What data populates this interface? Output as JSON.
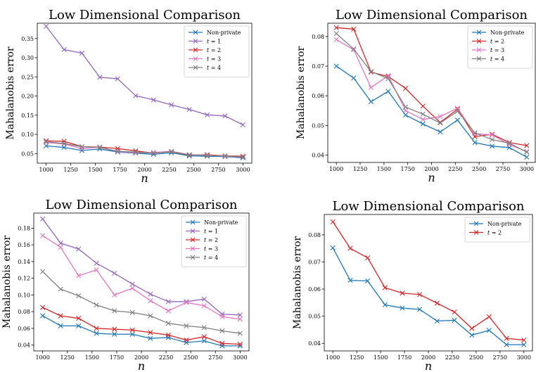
{
  "chart_data": [
    {
      "type": "line",
      "title": "Low Dimensional Comparison",
      "xlabel": "n",
      "ylabel": "Mahalanobis error",
      "x": [
        1000,
        1182,
        1364,
        1545,
        1727,
        1909,
        2091,
        2273,
        2455,
        2636,
        2818,
        3000
      ],
      "xticks": [
        1000,
        1250,
        1500,
        1750,
        2000,
        2250,
        2500,
        2750,
        3000
      ],
      "yticks": [
        0.05,
        0.1,
        0.15,
        0.2,
        0.25,
        0.3,
        0.35
      ],
      "ytick_labels": [
        "0.05",
        "0.10",
        "0.15",
        "0.20",
        "0.25",
        "0.30",
        "0.35"
      ],
      "xlim": [
        910,
        3090
      ],
      "ylim": [
        0.025,
        0.39
      ],
      "legend": "top-right",
      "series": [
        {
          "name": "Non-private",
          "color": "#1f77b4",
          "values": [
            0.07,
            0.066,
            0.058,
            0.062,
            0.054,
            0.051,
            0.048,
            0.052,
            0.044,
            0.043,
            0.042,
            0.039
          ]
        },
        {
          "name": "t = 1",
          "color": "#9467bd",
          "values": [
            0.382,
            0.321,
            0.312,
            0.249,
            0.245,
            0.201,
            0.19,
            0.177,
            0.165,
            0.151,
            0.148,
            0.125
          ]
        },
        {
          "name": "t = 2",
          "color": "#d62728",
          "values": [
            0.083,
            0.082,
            0.068,
            0.067,
            0.063,
            0.057,
            0.051,
            0.055,
            0.046,
            0.047,
            0.044,
            0.043
          ]
        },
        {
          "name": "t = 3",
          "color": "#e377c2",
          "values": [
            0.079,
            0.075,
            0.063,
            0.067,
            0.055,
            0.052,
            0.053,
            0.056,
            0.047,
            0.046,
            0.043,
            0.041
          ]
        },
        {
          "name": "t = 4",
          "color": "#7f7f7f",
          "values": [
            0.081,
            0.076,
            0.068,
            0.066,
            0.056,
            0.054,
            0.051,
            0.055,
            0.047,
            0.045,
            0.044,
            0.041
          ]
        }
      ]
    },
    {
      "type": "line",
      "title": "Low Dimensional Comparison",
      "xlabel": "n",
      "ylabel": "Mahalanobis error",
      "x": [
        1000,
        1182,
        1364,
        1545,
        1727,
        1909,
        2091,
        2273,
        2455,
        2636,
        2818,
        3000
      ],
      "xticks": [
        1000,
        1250,
        1500,
        1750,
        2000,
        2250,
        2500,
        2750,
        3000
      ],
      "yticks": [
        0.04,
        0.05,
        0.06,
        0.07,
        0.08
      ],
      "ytick_labels": [
        "0.04",
        "0.05",
        "0.06",
        "0.07",
        "0.08"
      ],
      "xlim": [
        910,
        3090
      ],
      "ylim": [
        0.0375,
        0.0845
      ],
      "legend": "top-right",
      "series": [
        {
          "name": "Non-private",
          "color": "#1f77b4",
          "values": [
            0.07,
            0.066,
            0.058,
            0.0615,
            0.0535,
            0.0505,
            0.0478,
            0.0518,
            0.0442,
            0.043,
            0.0425,
            0.0393
          ]
        },
        {
          "name": "t = 2",
          "color": "#d62728",
          "values": [
            0.083,
            0.0825,
            0.068,
            0.0665,
            0.0625,
            0.0565,
            0.051,
            0.0555,
            0.0462,
            0.047,
            0.0442,
            0.0432
          ]
        },
        {
          "name": "t = 3",
          "color": "#e377c2",
          "values": [
            0.079,
            0.0755,
            0.0628,
            0.0668,
            0.055,
            0.052,
            0.053,
            0.0558,
            0.0472,
            0.0468,
            0.0435,
            0.0412
          ]
        },
        {
          "name": "t = 4",
          "color": "#7f7f7f",
          "values": [
            0.081,
            0.0758,
            0.0682,
            0.0658,
            0.0562,
            0.0538,
            0.0508,
            0.0548,
            0.0475,
            0.0452,
            0.044,
            0.041
          ]
        }
      ]
    },
    {
      "type": "line",
      "title": "Low Dimensional Comparison",
      "xlabel": "n",
      "ylabel": "Mahalanobis error",
      "x": [
        1000,
        1182,
        1364,
        1545,
        1727,
        1909,
        2091,
        2273,
        2455,
        2636,
        2818,
        3000
      ],
      "xticks": [
        1000,
        1250,
        1500,
        1750,
        2000,
        2250,
        2500,
        2750,
        3000
      ],
      "yticks": [
        0.04,
        0.06,
        0.08,
        0.1,
        0.12,
        0.14,
        0.16,
        0.18
      ],
      "ytick_labels": [
        "0.04",
        "0.06",
        "0.08",
        "0.10",
        "0.12",
        "0.14",
        "0.16",
        "0.18"
      ],
      "xlim": [
        910,
        3090
      ],
      "ylim": [
        0.033,
        0.198
      ],
      "legend": "top-right",
      "series": [
        {
          "name": "Non-private",
          "color": "#1f77b4",
          "values": [
            0.075,
            0.063,
            0.063,
            0.054,
            0.053,
            0.053,
            0.048,
            0.049,
            0.043,
            0.045,
            0.039,
            0.039
          ]
        },
        {
          "name": "t = 1",
          "color": "#9467bd",
          "values": [
            0.191,
            0.162,
            0.155,
            0.138,
            0.126,
            0.113,
            0.101,
            0.092,
            0.092,
            0.095,
            0.077,
            0.076
          ]
        },
        {
          "name": "t = 2",
          "color": "#d62728",
          "values": [
            0.085,
            0.075,
            0.072,
            0.06,
            0.059,
            0.058,
            0.055,
            0.052,
            0.046,
            0.05,
            0.042,
            0.041
          ]
        },
        {
          "name": "t = 3",
          "color": "#e377c2",
          "values": [
            0.171,
            0.157,
            0.123,
            0.13,
            0.1,
            0.108,
            0.093,
            0.081,
            0.091,
            0.087,
            0.074,
            0.071
          ]
        },
        {
          "name": "t = 4",
          "color": "#7f7f7f",
          "values": [
            0.128,
            0.107,
            0.099,
            0.088,
            0.081,
            0.079,
            0.075,
            0.066,
            0.063,
            0.061,
            0.057,
            0.054
          ]
        }
      ]
    },
    {
      "type": "line",
      "title": "Low Dimensional Comparison",
      "xlabel": "n",
      "ylabel": "Mahalanobis error",
      "x": [
        1000,
        1182,
        1364,
        1545,
        1727,
        1909,
        2091,
        2273,
        2455,
        2636,
        2818,
        3000
      ],
      "xticks": [
        1000,
        1250,
        1500,
        1750,
        2000,
        2250,
        2500,
        2750,
        3000
      ],
      "yticks": [
        0.04,
        0.05,
        0.06,
        0.07,
        0.08
      ],
      "ytick_labels": [
        "0.04",
        "0.05",
        "0.06",
        "0.07",
        "0.08"
      ],
      "xlim": [
        910,
        3090
      ],
      "ylim": [
        0.0372,
        0.0875
      ],
      "legend": "top-right",
      "series": [
        {
          "name": "Non-private",
          "color": "#1f77b4",
          "values": [
            0.0752,
            0.0632,
            0.063,
            0.0542,
            0.053,
            0.0525,
            0.0482,
            0.0485,
            0.043,
            0.0448,
            0.0395,
            0.0395
          ]
        },
        {
          "name": "t = 2",
          "color": "#d62728",
          "values": [
            0.0848,
            0.075,
            0.0715,
            0.0605,
            0.0585,
            0.058,
            0.0548,
            0.0515,
            0.0455,
            0.0498,
            0.0418,
            0.0412
          ]
        }
      ]
    }
  ]
}
